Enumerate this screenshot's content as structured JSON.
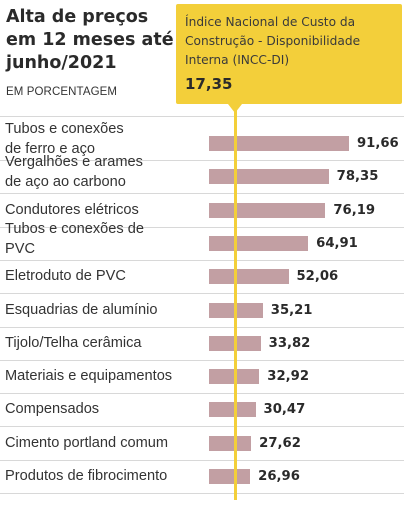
{
  "chart_data": {
    "type": "bar",
    "orientation": "horizontal",
    "title": "Alta de preços em 12 meses até junho/2021",
    "subtitle": "EM PORCENTAGEM",
    "reference": {
      "label": "Índice Nacional de Custo da Construção - Disponibilidade Interna (INCC-DI)",
      "value_label": "17,35",
      "value": 17.35
    },
    "categories": [
      "Tubos e conexões\nde ferro e aço",
      "Vergalhões e arames\nde aço ao carbono",
      "Condutores elétricos",
      "Tubos e conexões de\nPVC",
      "Eletroduto de PVC",
      "Esquadrias de alumínio",
      "Tijolo/Telha cerâmica",
      "Materiais e equipamentos",
      "Compensados",
      "Cimento portland comum",
      "Produtos de fibrocimento"
    ],
    "values": [
      91.66,
      78.35,
      76.19,
      64.91,
      52.06,
      35.21,
      33.82,
      32.92,
      30.47,
      27.62,
      26.96
    ],
    "value_labels": [
      "91,66",
      "78,35",
      "76,19",
      "64,91",
      "52,06",
      "35,21",
      "33,82",
      "32,92",
      "30,47",
      "27,62",
      "26,96"
    ],
    "bar_color": "#c29fa3",
    "reference_color": "#f3cf3a",
    "xlim": [
      0,
      100
    ],
    "grid": false,
    "legend": "none"
  }
}
